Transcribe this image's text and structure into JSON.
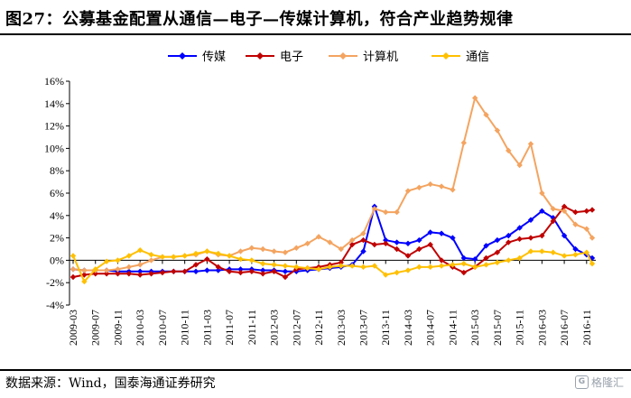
{
  "title": "图27：公募基金配置从通信—电子—传媒计算机，符合产业趋势规律",
  "source": "数据来源：Wind，国泰海通证券研究",
  "watermark": "格隆汇",
  "chart_data": {
    "type": "line",
    "title": "图27：公募基金配置从通信—电子—传媒计算机，符合产业趋势规律",
    "xlabel": "",
    "ylabel": "",
    "ylim": [
      -4,
      16
    ],
    "y_ticks": [
      -4,
      -2,
      0,
      2,
      4,
      6,
      8,
      10,
      12,
      14,
      16
    ],
    "y_tick_labels": [
      "-4%",
      "-2%",
      "0%",
      "2%",
      "4%",
      "6%",
      "8%",
      "10%",
      "12%",
      "14%",
      "16%"
    ],
    "x_tick_labels": [
      "2009-03",
      "2009-07",
      "2009-11",
      "2010-03",
      "2010-07",
      "2010-11",
      "2011-03",
      "2011-07",
      "2011-11",
      "2012-03",
      "2012-07",
      "2012-11",
      "2013-03",
      "2013-07",
      "2013-11",
      "2014-03",
      "2014-07",
      "2014-11",
      "2015-03",
      "2015-07",
      "2015-11",
      "2016-03",
      "2016-07",
      "2016-11"
    ],
    "x": [
      "2009-03",
      "2009-05",
      "2009-07",
      "2009-09",
      "2009-11",
      "2010-01",
      "2010-03",
      "2010-05",
      "2010-07",
      "2010-09",
      "2010-11",
      "2011-01",
      "2011-03",
      "2011-05",
      "2011-07",
      "2011-09",
      "2011-11",
      "2012-01",
      "2012-03",
      "2012-05",
      "2012-07",
      "2012-09",
      "2012-11",
      "2013-01",
      "2013-03",
      "2013-05",
      "2013-07",
      "2013-09",
      "2013-11",
      "2014-01",
      "2014-03",
      "2014-05",
      "2014-07",
      "2014-09",
      "2014-11",
      "2015-01",
      "2015-03",
      "2015-05",
      "2015-07",
      "2015-09",
      "2015-11",
      "2016-01",
      "2016-03",
      "2016-05",
      "2016-07",
      "2016-09",
      "2016-11",
      "2016-12"
    ],
    "legend_position": "top",
    "grid": false,
    "series": [
      {
        "name": "传媒",
        "color": "#0000ff",
        "marker": "diamond",
        "values": [
          -0.8,
          -0.9,
          -0.9,
          -0.9,
          -1.0,
          -1.0,
          -1.0,
          -1.0,
          -1.0,
          -1.0,
          -1.0,
          -1.0,
          -0.9,
          -0.9,
          -0.8,
          -0.8,
          -0.8,
          -0.9,
          -0.9,
          -1.0,
          -1.0,
          -0.9,
          -0.8,
          -0.7,
          -0.6,
          -0.4,
          0.8,
          4.8,
          1.8,
          1.6,
          1.5,
          1.8,
          2.5,
          2.4,
          2.0,
          0.2,
          0.1,
          1.3,
          1.8,
          2.2,
          2.9,
          3.6,
          4.4,
          3.8,
          2.2,
          1.0,
          0.5,
          0.2
        ]
      },
      {
        "name": "电子",
        "color": "#c00000",
        "marker": "diamond",
        "values": [
          -1.5,
          -1.3,
          -1.2,
          -1.2,
          -1.2,
          -1.2,
          -1.3,
          -1.2,
          -1.1,
          -1.0,
          -1.0,
          -0.4,
          0.1,
          -0.6,
          -1.0,
          -1.1,
          -1.0,
          -1.2,
          -1.0,
          -1.5,
          -0.8,
          -0.7,
          -0.6,
          -0.4,
          -0.2,
          1.4,
          1.8,
          1.4,
          1.5,
          1.0,
          0.4,
          1.0,
          1.4,
          0.0,
          -0.6,
          -1.1,
          -0.6,
          0.2,
          0.7,
          1.6,
          1.9,
          2.0,
          2.2,
          3.5,
          4.8,
          4.3,
          4.4,
          4.5
        ]
      },
      {
        "name": "计算机",
        "color": "#f4a460",
        "marker": "diamond",
        "values": [
          -0.8,
          -0.9,
          -0.9,
          -0.9,
          -0.8,
          -0.6,
          -0.4,
          0.0,
          0.3,
          0.3,
          0.4,
          0.5,
          0.8,
          0.5,
          0.4,
          0.8,
          1.1,
          1.0,
          0.8,
          0.7,
          1.1,
          1.5,
          2.1,
          1.6,
          1.0,
          1.8,
          2.4,
          4.6,
          4.3,
          4.3,
          6.2,
          6.5,
          6.8,
          6.6,
          6.3,
          10.5,
          14.5,
          13.0,
          11.6,
          9.8,
          8.5,
          10.4,
          6.0,
          4.6,
          4.4,
          3.2,
          2.8,
          2.0
        ]
      },
      {
        "name": "通信",
        "color": "#ffc000",
        "marker": "diamond",
        "values": [
          0.4,
          -1.9,
          -0.8,
          -0.1,
          0.0,
          0.4,
          0.9,
          0.5,
          0.3,
          0.3,
          0.4,
          0.6,
          0.8,
          0.6,
          0.4,
          0.1,
          0.0,
          -0.3,
          -0.4,
          -0.5,
          -0.6,
          -0.7,
          -0.8,
          -0.6,
          -0.5,
          -0.5,
          -0.6,
          -0.5,
          -1.3,
          -1.1,
          -0.9,
          -0.6,
          -0.6,
          -0.5,
          -0.4,
          -0.3,
          -0.6,
          -0.4,
          -0.2,
          0.0,
          0.2,
          0.8,
          0.8,
          0.7,
          0.4,
          0.5,
          0.7,
          -0.3
        ]
      }
    ]
  }
}
